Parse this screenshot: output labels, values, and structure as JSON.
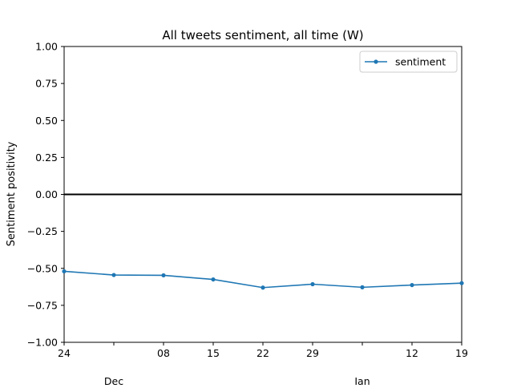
{
  "chart_data": {
    "type": "line",
    "title": "All tweets sentiment, all time (W)",
    "xlabel": "",
    "ylabel": "Sentiment positivity",
    "x": [
      "24",
      "",
      "08",
      "15",
      "22",
      "29",
      "",
      "12",
      "19"
    ],
    "x_tick_labels": [
      "24",
      "",
      "08",
      "15",
      "22",
      "29",
      "",
      "12",
      "19"
    ],
    "x_month_labels": [
      {
        "label": "Dec",
        "index": 1
      },
      {
        "label": "Jan",
        "index": 6
      }
    ],
    "series": [
      {
        "name": "sentiment",
        "color": "#1f77b4",
        "values": [
          -0.52,
          -0.545,
          -0.547,
          -0.575,
          -0.63,
          -0.607,
          -0.628,
          -0.613,
          -0.6
        ]
      }
    ],
    "ylim": [
      -1.0,
      1.0
    ],
    "y_ticks": [
      "1.00",
      "0.75",
      "0.50",
      "0.25",
      "0.00",
      "−0.25",
      "−0.50",
      "−0.75",
      "−1.00"
    ],
    "y_tick_values": [
      1.0,
      0.75,
      0.5,
      0.25,
      0.0,
      -0.25,
      -0.5,
      -0.75,
      -1.0
    ],
    "hline": 0.0,
    "grid": false,
    "legend": {
      "position": "top-right",
      "entries": [
        "sentiment"
      ]
    }
  }
}
